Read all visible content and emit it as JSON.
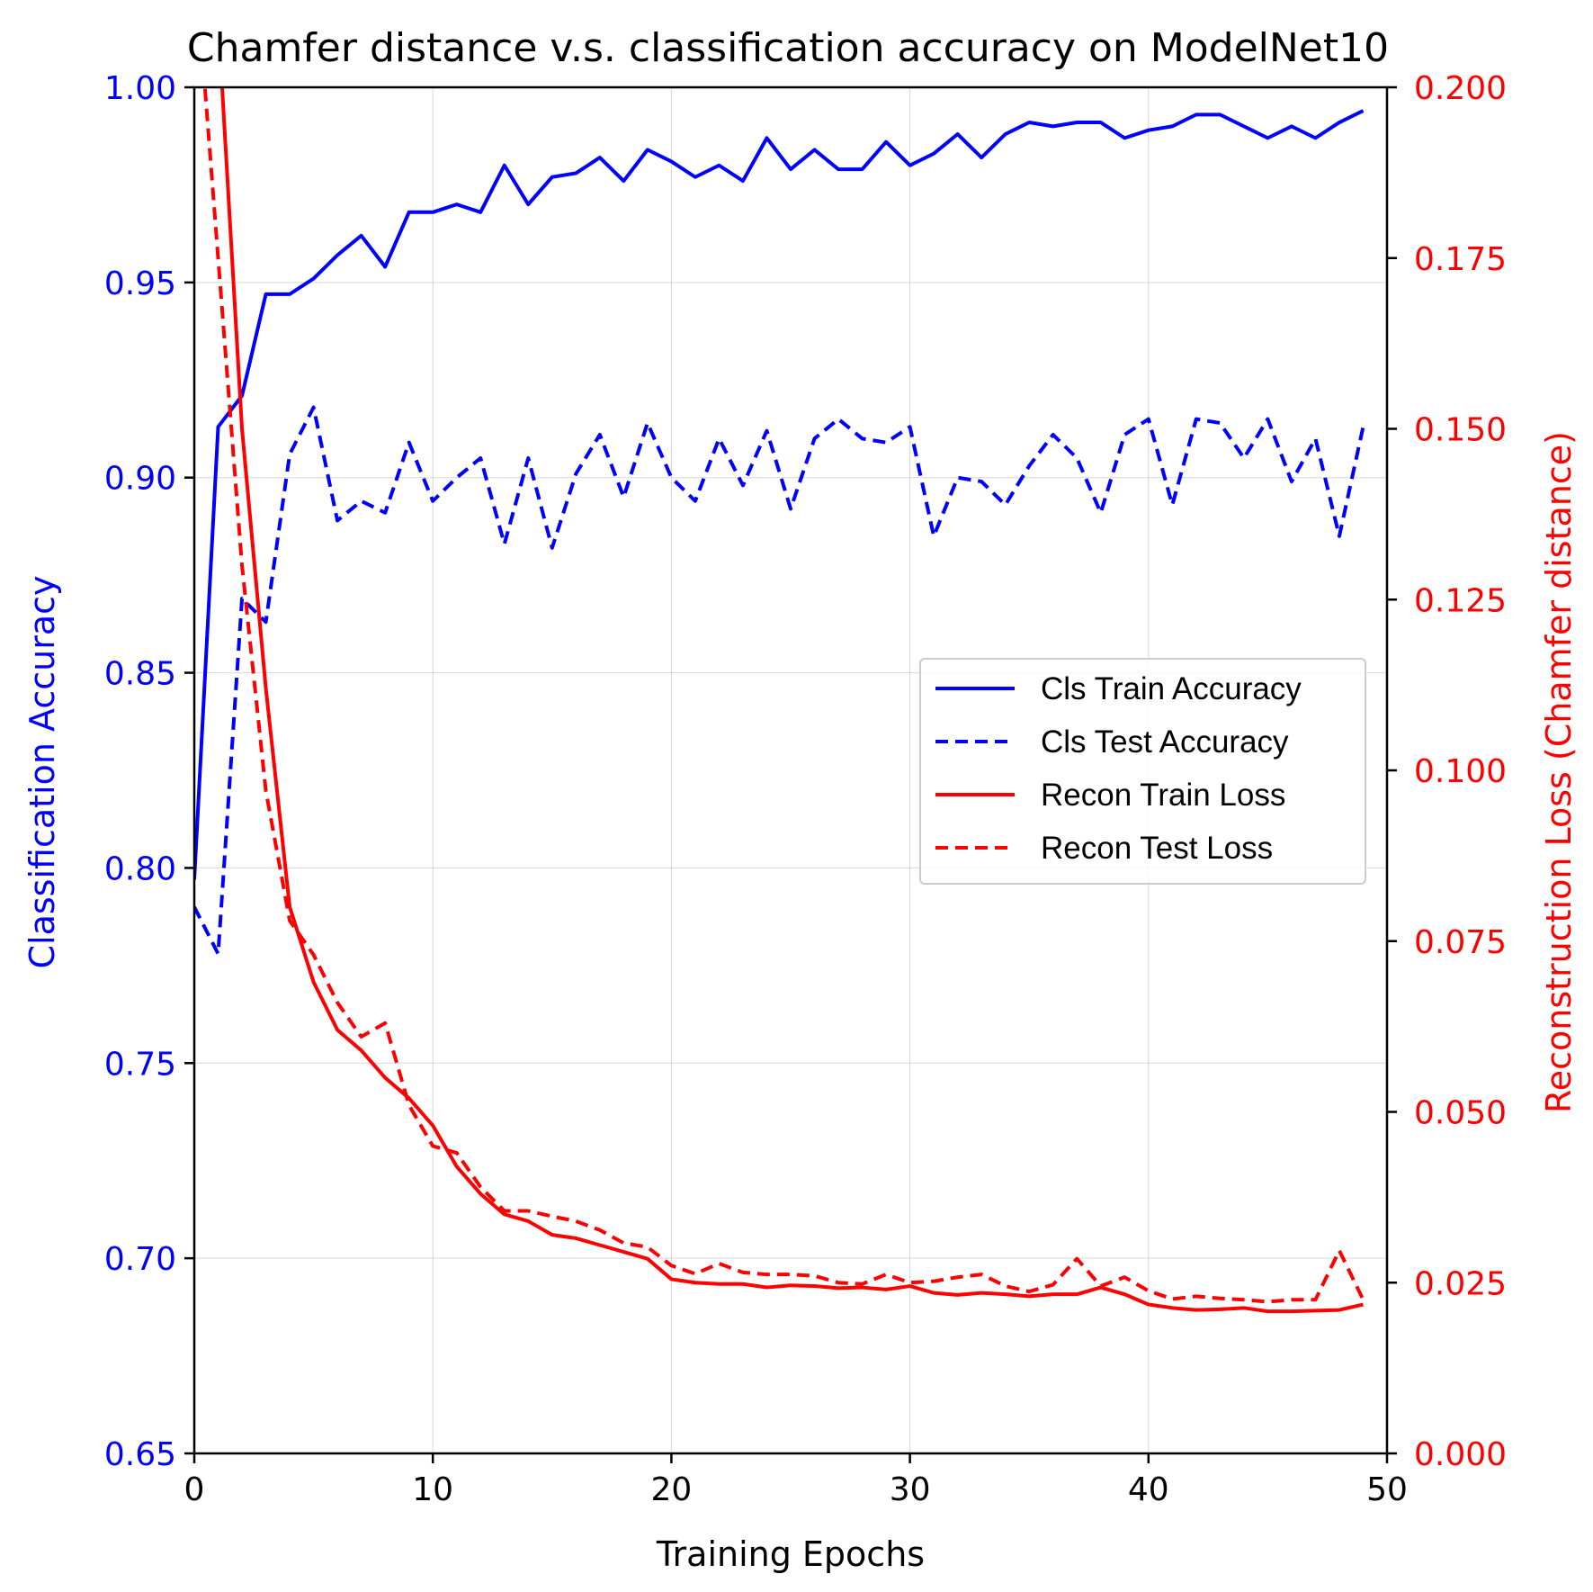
{
  "chart_data": {
    "type": "line",
    "title": "Chamfer distance v.s. classification accuracy on ModelNet10",
    "xlabel": "Training Epochs",
    "ylabel_left": "Classification Accuracy",
    "ylabel_right": "Reconstruction Loss (Chamfer distance)",
    "xlim": [
      0,
      50
    ],
    "ylim_left": [
      0.65,
      1.0
    ],
    "ylim_right": [
      0.0,
      0.2
    ],
    "x_ticks": [
      "0",
      "10",
      "20",
      "30",
      "40",
      "50"
    ],
    "y_left_ticks": [
      "0.65",
      "0.70",
      "0.75",
      "0.80",
      "0.85",
      "0.90",
      "0.95",
      "1.00"
    ],
    "y_right_ticks": [
      "0.000",
      "0.025",
      "0.050",
      "0.075",
      "0.100",
      "0.125",
      "0.150",
      "0.175",
      "0.200"
    ],
    "grid": true,
    "legend_position": "center-right",
    "colors": {
      "left_axis": "#0000ff",
      "right_axis": "#ff0000",
      "text": "#000000"
    },
    "x": [
      0,
      1,
      2,
      3,
      4,
      5,
      6,
      7,
      8,
      9,
      10,
      11,
      12,
      13,
      14,
      15,
      16,
      17,
      18,
      19,
      20,
      21,
      22,
      23,
      24,
      25,
      26,
      27,
      28,
      29,
      30,
      31,
      32,
      33,
      34,
      35,
      36,
      37,
      38,
      39,
      40,
      41,
      42,
      43,
      44,
      45,
      46,
      47,
      48,
      49
    ],
    "series": [
      {
        "name": "Cls Train Accuracy",
        "axis": "left",
        "color": "#0000ff",
        "dash": "solid",
        "values": [
          0.797,
          0.913,
          0.921,
          0.947,
          0.947,
          0.951,
          0.957,
          0.962,
          0.954,
          0.968,
          0.968,
          0.97,
          0.968,
          0.98,
          0.97,
          0.977,
          0.978,
          0.982,
          0.976,
          0.984,
          0.981,
          0.977,
          0.98,
          0.976,
          0.987,
          0.979,
          0.984,
          0.979,
          0.979,
          0.986,
          0.98,
          0.983,
          0.988,
          0.982,
          0.988,
          0.991,
          0.99,
          0.991,
          0.991,
          0.987,
          0.989,
          0.99,
          0.993,
          0.993,
          0.99,
          0.987,
          0.99,
          0.987,
          0.991,
          0.994
        ]
      },
      {
        "name": "Cls Test Accuracy",
        "axis": "left",
        "color": "#0000ff",
        "dash": "dashed",
        "values": [
          0.79,
          0.778,
          0.869,
          0.863,
          0.906,
          0.918,
          0.889,
          0.894,
          0.891,
          0.909,
          0.894,
          0.9,
          0.905,
          0.883,
          0.905,
          0.882,
          0.901,
          0.911,
          0.895,
          0.914,
          0.9,
          0.894,
          0.91,
          0.898,
          0.912,
          0.892,
          0.91,
          0.915,
          0.91,
          0.909,
          0.913,
          0.885,
          0.9,
          0.899,
          0.893,
          0.903,
          0.911,
          0.905,
          0.891,
          0.911,
          0.915,
          0.893,
          0.915,
          0.914,
          0.905,
          0.915,
          0.899,
          0.91,
          0.885,
          0.913
        ]
      },
      {
        "name": "Recon Train Loss",
        "axis": "right",
        "color": "#ff0000",
        "dash": "solid",
        "values": [
          0.22,
          0.21,
          0.15,
          0.112,
          0.08,
          0.069,
          0.062,
          0.059,
          0.055,
          0.052,
          0.048,
          0.042,
          0.038,
          0.035,
          0.034,
          0.032,
          0.0315,
          0.0305,
          0.0295,
          0.0285,
          0.0255,
          0.025,
          0.0248,
          0.0248,
          0.0243,
          0.0246,
          0.0245,
          0.0242,
          0.0243,
          0.024,
          0.0245,
          0.0235,
          0.0232,
          0.0235,
          0.0233,
          0.023,
          0.0233,
          0.0233,
          0.0243,
          0.0233,
          0.0218,
          0.0213,
          0.021,
          0.0211,
          0.0213,
          0.0208,
          0.0208,
          0.0209,
          0.021,
          0.0218
        ]
      },
      {
        "name": "Recon Test Loss",
        "axis": "right",
        "color": "#ff0000",
        "dash": "dashed",
        "values": [
          0.22,
          0.175,
          0.13,
          0.097,
          0.078,
          0.073,
          0.066,
          0.061,
          0.063,
          0.051,
          0.045,
          0.044,
          0.039,
          0.0355,
          0.0355,
          0.0347,
          0.034,
          0.0327,
          0.0308,
          0.0302,
          0.0275,
          0.0263,
          0.0278,
          0.0265,
          0.0262,
          0.0262,
          0.026,
          0.025,
          0.0248,
          0.0262,
          0.025,
          0.0252,
          0.0258,
          0.0262,
          0.0245,
          0.0237,
          0.0247,
          0.0285,
          0.0245,
          0.0258,
          0.0238,
          0.0226,
          0.023,
          0.0227,
          0.0225,
          0.0222,
          0.0225,
          0.0225,
          0.0297,
          0.0225
        ]
      }
    ]
  }
}
